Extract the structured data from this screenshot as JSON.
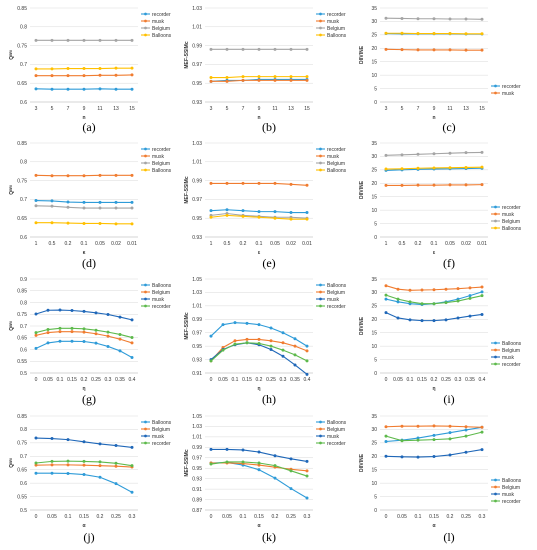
{
  "colors": {
    "recorder": "#2E9BD8",
    "musk": "#F07C30",
    "Belgium": "#A5A5A5",
    "Balloons": "#FFC000",
    "Balloons2": "#2E9BD8",
    "Belgium2": "#F07C30",
    "musk2": "#1F67B8",
    "recorder2": "#5DB94B",
    "grid": "#D9D9D9",
    "axis": "#BFBFBF"
  },
  "charts": [
    {
      "caption": "(a)",
      "type": "line",
      "ylabel": "Qᴮᴿᴵ",
      "xlabel": "n",
      "ylim": [
        0.6,
        0.85
      ],
      "yticks": [
        "0.6",
        "0.65",
        "0.7",
        "0.75",
        "0.8",
        "0.85"
      ],
      "categories": [
        "3",
        "5",
        "7",
        "9",
        "11",
        "13",
        "15"
      ],
      "legend": "top-right",
      "series": [
        {
          "name": "recorder",
          "color": "recorder",
          "values": [
            0.635,
            0.634,
            0.634,
            0.634,
            0.635,
            0.634,
            0.634
          ]
        },
        {
          "name": "musk",
          "color": "musk",
          "values": [
            0.67,
            0.67,
            0.67,
            0.67,
            0.671,
            0.671,
            0.672
          ]
        },
        {
          "name": "Belgium",
          "color": "Belgium",
          "values": [
            0.764,
            0.764,
            0.764,
            0.764,
            0.764,
            0.764,
            0.764
          ]
        },
        {
          "name": "Balloons",
          "color": "Balloons",
          "values": [
            0.688,
            0.688,
            0.689,
            0.689,
            0.689,
            0.69,
            0.69
          ]
        }
      ]
    },
    {
      "caption": "(b)",
      "type": "line",
      "ylabel": "MEF-SSIMc",
      "xlabel": "n",
      "ylim": [
        0.93,
        1.03
      ],
      "yticks": [
        "0.93",
        "0.95",
        "0.97",
        "0.99",
        "1.01",
        "1.03"
      ],
      "categories": [
        "3",
        "5",
        "7",
        "9",
        "11",
        "13",
        "15"
      ],
      "legend": "top-right",
      "series": [
        {
          "name": "recorder",
          "color": "recorder",
          "values": [
            0.952,
            0.953,
            0.953,
            0.954,
            0.954,
            0.954,
            0.954
          ]
        },
        {
          "name": "musk",
          "color": "musk",
          "values": [
            0.952,
            0.952,
            0.953,
            0.953,
            0.953,
            0.953,
            0.953
          ]
        },
        {
          "name": "Belgium",
          "color": "Belgium",
          "values": [
            0.986,
            0.986,
            0.986,
            0.986,
            0.986,
            0.986,
            0.986
          ]
        },
        {
          "name": "Balloons",
          "color": "Balloons",
          "values": [
            0.956,
            0.956,
            0.957,
            0.957,
            0.957,
            0.957,
            0.957
          ]
        }
      ]
    },
    {
      "caption": "(c)",
      "type": "line",
      "ylabel": "DIIVINE",
      "xlabel": "n",
      "ylim": [
        0,
        35
      ],
      "yticks": [
        "0",
        "5",
        "10",
        "15",
        "20",
        "25",
        "30",
        "35"
      ],
      "categories": [
        "3",
        "5",
        "7",
        "9",
        "11",
        "13",
        "15"
      ],
      "legend": "bottom-right",
      "series": [
        {
          "name": "recorder",
          "color": "recorder",
          "values": [
            25.5,
            25.4,
            25.4,
            25.4,
            25.4,
            25.3,
            25.3
          ]
        },
        {
          "name": "musk",
          "color": "musk",
          "values": [
            19.6,
            19.5,
            19.4,
            19.4,
            19.4,
            19.3,
            19.3
          ]
        },
        {
          "name": "",
          "color": "Belgium",
          "values": [
            31.2,
            31.1,
            31.0,
            31.0,
            30.9,
            30.9,
            30.8
          ]
        },
        {
          "name": "",
          "color": "Balloons",
          "values": [
            25.6,
            25.6,
            25.5,
            25.5,
            25.5,
            25.4,
            25.4
          ]
        }
      ]
    },
    {
      "caption": "(d)",
      "type": "line",
      "ylabel": "Qᴮᴿᴵ",
      "xlabel": "κ",
      "ylim": [
        0.6,
        0.85
      ],
      "yticks": [
        "0.6",
        "0.65",
        "0.7",
        "0.75",
        "0.8",
        "0.85"
      ],
      "categories": [
        "1",
        "0.5",
        "0.2",
        "0.1",
        "0.05",
        "0.02",
        "0.01"
      ],
      "legend": "top-right",
      "series": [
        {
          "name": "recorder",
          "color": "recorder",
          "values": [
            0.697,
            0.696,
            0.693,
            0.692,
            0.692,
            0.692,
            0.692
          ]
        },
        {
          "name": "musk",
          "color": "musk",
          "values": [
            0.764,
            0.763,
            0.763,
            0.763,
            0.764,
            0.764,
            0.764
          ]
        },
        {
          "name": "Belgium",
          "color": "Belgium",
          "values": [
            0.683,
            0.682,
            0.679,
            0.677,
            0.677,
            0.677,
            0.677
          ]
        },
        {
          "name": "Balloons",
          "color": "Balloons",
          "values": [
            0.638,
            0.638,
            0.637,
            0.636,
            0.636,
            0.635,
            0.635
          ]
        }
      ]
    },
    {
      "caption": "(e)",
      "type": "line",
      "ylabel": "MEF-SSIMc",
      "xlabel": "ε",
      "ylim": [
        0.93,
        1.03
      ],
      "yticks": [
        "0.93",
        "0.95",
        "0.97",
        "0.99",
        "1.01",
        "1.03"
      ],
      "categories": [
        "1",
        "0.5",
        "0.2",
        "0.1",
        "0.05",
        "0.02",
        "0.01"
      ],
      "legend": "top-right",
      "series": [
        {
          "name": "recorder",
          "color": "recorder",
          "values": [
            0.958,
            0.959,
            0.958,
            0.957,
            0.957,
            0.956,
            0.956
          ]
        },
        {
          "name": "musk",
          "color": "musk",
          "values": [
            0.987,
            0.987,
            0.987,
            0.987,
            0.987,
            0.986,
            0.985
          ]
        },
        {
          "name": "Belgium",
          "color": "Belgium",
          "values": [
            0.953,
            0.955,
            0.953,
            0.952,
            0.951,
            0.951,
            0.95
          ]
        },
        {
          "name": "Balloons",
          "color": "Balloons",
          "values": [
            0.951,
            0.953,
            0.952,
            0.951,
            0.95,
            0.949,
            0.949
          ]
        }
      ]
    },
    {
      "caption": "(f)",
      "type": "line",
      "ylabel": "DIIVINE",
      "xlabel": "ε",
      "ylim": [
        0,
        35
      ],
      "yticks": [
        "0",
        "5",
        "10",
        "15",
        "20",
        "25",
        "30",
        "35"
      ],
      "categories": [
        "1",
        "0.5",
        "0.2",
        "0.1",
        "0.05",
        "0.02",
        "0.01"
      ],
      "legend": "bottom-right",
      "series": [
        {
          "name": "recorder",
          "color": "recorder",
          "values": [
            24.8,
            25.0,
            25.2,
            25.3,
            25.4,
            25.5,
            25.6
          ]
        },
        {
          "name": "musk",
          "color": "musk",
          "values": [
            19.2,
            19.2,
            19.3,
            19.3,
            19.4,
            19.4,
            19.5
          ]
        },
        {
          "name": "Belgium",
          "color": "Belgium",
          "values": [
            30.4,
            30.6,
            30.8,
            31.0,
            31.2,
            31.4,
            31.5
          ]
        },
        {
          "name": "Balloons",
          "color": "Balloons",
          "values": [
            25.3,
            25.4,
            25.6,
            25.7,
            25.8,
            25.9,
            26.0
          ]
        }
      ]
    },
    {
      "caption": "(g)",
      "type": "line",
      "ylabel": "Qᴮᴿᴵ",
      "xlabel": "η",
      "ylim": [
        0.5,
        0.9
      ],
      "yticks": [
        "0.5",
        "0.55",
        "0.6",
        "0.65",
        "0.7",
        "0.75",
        "0.8",
        "0.85",
        "0.9"
      ],
      "categories": [
        "0",
        "0.05",
        "0.1",
        "0.15",
        "0.2",
        "0.25",
        "0.3",
        "0.35",
        "0.4"
      ],
      "legend": "top-right",
      "series": [
        {
          "name": "Balloons",
          "color": "Balloons2",
          "values": [
            0.605,
            0.628,
            0.635,
            0.635,
            0.634,
            0.627,
            0.613,
            0.594,
            0.566
          ]
        },
        {
          "name": "Belgium",
          "color": "Belgium2",
          "values": [
            0.66,
            0.672,
            0.676,
            0.676,
            0.674,
            0.667,
            0.657,
            0.644,
            0.628
          ]
        },
        {
          "name": "musk",
          "color": "musk2",
          "values": [
            0.751,
            0.767,
            0.768,
            0.766,
            0.762,
            0.756,
            0.749,
            0.738,
            0.726
          ]
        },
        {
          "name": "recorder",
          "color": "recorder2",
          "values": [
            0.672,
            0.685,
            0.69,
            0.69,
            0.688,
            0.682,
            0.674,
            0.664,
            0.651
          ]
        }
      ]
    },
    {
      "caption": "(h)",
      "type": "line",
      "ylabel": "MEF-SSIMc",
      "xlabel": "η",
      "ylim": [
        0.91,
        1.05
      ],
      "yticks": [
        "0.91",
        "0.93",
        "0.95",
        "0.97",
        "0.99",
        "1.01",
        "1.03",
        "1.05"
      ],
      "categories": [
        "0",
        "0.05",
        "0.1",
        "0.15",
        "0.2",
        "0.25",
        "0.3",
        "0.35",
        "0.4"
      ],
      "legend": "top-right",
      "series": [
        {
          "name": "Balloons",
          "color": "Balloons2",
          "values": [
            0.965,
            0.982,
            0.985,
            0.984,
            0.982,
            0.977,
            0.97,
            0.961,
            0.95
          ]
        },
        {
          "name": "Belgium",
          "color": "Belgium2",
          "values": [
            0.928,
            0.948,
            0.958,
            0.96,
            0.96,
            0.958,
            0.955,
            0.95,
            0.943
          ]
        },
        {
          "name": "musk",
          "color": "musk2",
          "values": [
            0.93,
            0.945,
            0.952,
            0.955,
            0.952,
            0.945,
            0.935,
            0.922,
            0.908
          ]
        },
        {
          "name": "recorder",
          "color": "recorder2",
          "values": [
            0.928,
            0.944,
            0.953,
            0.955,
            0.954,
            0.95,
            0.944,
            0.937,
            0.928
          ]
        }
      ]
    },
    {
      "caption": "(i)",
      "type": "line",
      "ylabel": "DIIVINE",
      "xlabel": "η",
      "ylim": [
        0,
        35
      ],
      "yticks": [
        "0",
        "5",
        "10",
        "15",
        "20",
        "25",
        "30",
        "35"
      ],
      "categories": [
        "0",
        "0.05",
        "0.1",
        "0.15",
        "0.2",
        "0.25",
        "0.3",
        "0.35",
        "0.4"
      ],
      "legend": "bottom-right",
      "series": [
        {
          "name": "Balloons",
          "color": "Balloons2",
          "values": [
            27.5,
            26.5,
            25.8,
            25.5,
            25.8,
            26.5,
            27.5,
            28.8,
            30.2
          ]
        },
        {
          "name": "Belgium",
          "color": "Belgium2",
          "values": [
            32.5,
            31.2,
            30.8,
            30.9,
            31.0,
            31.2,
            31.4,
            31.7,
            32.0
          ]
        },
        {
          "name": "musk",
          "color": "musk2",
          "values": [
            22.5,
            20.5,
            19.8,
            19.5,
            19.5,
            19.8,
            20.5,
            21.2,
            21.8
          ]
        },
        {
          "name": "recorder",
          "color": "recorder2",
          "values": [
            29.0,
            27.5,
            26.5,
            25.8,
            25.8,
            26.2,
            26.8,
            27.8,
            28.8
          ]
        }
      ]
    },
    {
      "caption": "(j)",
      "type": "line",
      "ylabel": "Qᴮᴿᴵ",
      "xlabel": "α",
      "ylim": [
        0.5,
        0.85
      ],
      "yticks": [
        "0.5",
        "0.55",
        "0.6",
        "0.65",
        "0.7",
        "0.75",
        "0.8",
        "0.85"
      ],
      "categories": [
        "0",
        "0.05",
        "0.1",
        "0.15",
        "0.2",
        "0.25",
        "0.3"
      ],
      "legend": "top-right",
      "series": [
        {
          "name": "Balloons",
          "color": "Balloons2",
          "values": [
            0.637,
            0.637,
            0.636,
            0.632,
            0.622,
            0.598,
            0.566
          ]
        },
        {
          "name": "Belgium",
          "color": "Belgium2",
          "values": [
            0.667,
            0.668,
            0.668,
            0.667,
            0.665,
            0.663,
            0.66
          ]
        },
        {
          "name": "musk",
          "color": "musk2",
          "values": [
            0.768,
            0.766,
            0.762,
            0.754,
            0.746,
            0.74,
            0.733
          ]
        },
        {
          "name": "recorder",
          "color": "recorder2",
          "values": [
            0.675,
            0.681,
            0.682,
            0.681,
            0.679,
            0.674,
            0.665
          ]
        }
      ]
    },
    {
      "caption": "(k)",
      "type": "line",
      "ylabel": "MEF-SSIMc",
      "xlabel": "α",
      "ylim": [
        0.87,
        1.05
      ],
      "yticks": [
        "0.87",
        "0.89",
        "0.91",
        "0.93",
        "0.95",
        "0.97",
        "0.99",
        "1.01",
        "1.03",
        "1.05"
      ],
      "categories": [
        "0",
        "0.05",
        "0.1",
        "0.15",
        "0.2",
        "0.25",
        "0.3"
      ],
      "legend": "top-right",
      "series": [
        {
          "name": "Balloons",
          "color": "Balloons2",
          "values": [
            0.96,
            0.961,
            0.956,
            0.947,
            0.931,
            0.911,
            0.893
          ]
        },
        {
          "name": "Belgium",
          "color": "Belgium2",
          "values": [
            0.96,
            0.96,
            0.959,
            0.956,
            0.952,
            0.948,
            0.945
          ]
        },
        {
          "name": "musk",
          "color": "musk2",
          "values": [
            0.986,
            0.986,
            0.985,
            0.981,
            0.974,
            0.968,
            0.963
          ]
        },
        {
          "name": "recorder",
          "color": "recorder2",
          "values": [
            0.958,
            0.962,
            0.962,
            0.96,
            0.955,
            0.945,
            0.935
          ]
        }
      ]
    },
    {
      "caption": "(l)",
      "type": "line",
      "ylabel": "DIIVINE",
      "xlabel": "α",
      "ylim": [
        0,
        35
      ],
      "yticks": [
        "0",
        "5",
        "10",
        "15",
        "20",
        "25",
        "30",
        "35"
      ],
      "categories": [
        "0",
        "0.05",
        "0.1",
        "0.15",
        "0.2",
        "0.25",
        "0.3"
      ],
      "legend": "bottom-right",
      "series": [
        {
          "name": "Balloons",
          "color": "Balloons2",
          "values": [
            25.5,
            26.0,
            26.8,
            27.8,
            28.8,
            29.8,
            30.8
          ]
        },
        {
          "name": "Belgium",
          "color": "Belgium2",
          "values": [
            31.0,
            31.2,
            31.2,
            31.3,
            31.2,
            31.0,
            30.8
          ]
        },
        {
          "name": "musk",
          "color": "musk2",
          "values": [
            20.0,
            19.8,
            19.7,
            19.9,
            20.5,
            21.5,
            22.5
          ]
        },
        {
          "name": "recorder",
          "color": "recorder2",
          "values": [
            27.5,
            25.8,
            26.0,
            26.2,
            26.5,
            27.5,
            29.0
          ]
        }
      ]
    }
  ]
}
